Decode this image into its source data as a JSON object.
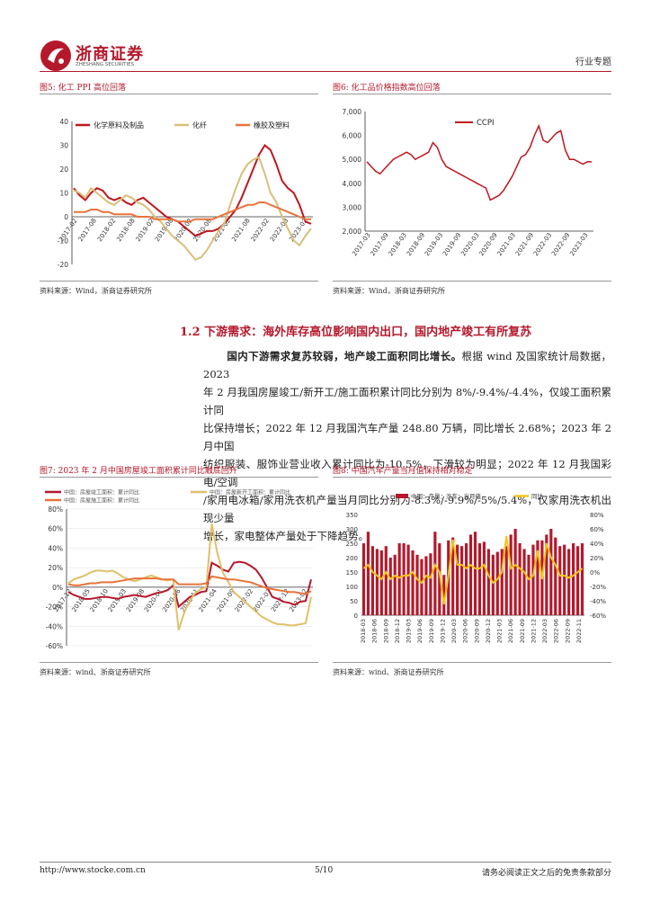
{
  "header": {
    "company_cn": "浙商证券",
    "company_en": "ZHESHANG SECURITIES",
    "section": "行业专题",
    "accent": "#b5182b"
  },
  "fig5": {
    "title": "图5:  化工 PPI 高位回落",
    "source": "资料来源：Wind，浙商证券研究所",
    "chart_data": {
      "type": "line",
      "title": "化工 PPI 高位回落",
      "ylim": [
        -20,
        40
      ],
      "yticks": [
        "40",
        "30",
        "20",
        "10",
        "0",
        "-10",
        "-20"
      ],
      "xticks": [
        "2017-02",
        "2017-08",
        "2018-02",
        "2018-08",
        "2019-02",
        "2019-08",
        "2020-02",
        "2020-08",
        "2021-02",
        "2021-08",
        "2022-02",
        "2022-08",
        "2023-02"
      ],
      "series": [
        {
          "name": "化学原料及制品",
          "color": "#c0161f",
          "values": [
            12,
            9,
            7,
            10,
            12,
            11,
            8,
            7,
            8,
            6,
            5,
            7,
            8,
            6,
            4,
            2,
            0,
            -1,
            -2,
            -4,
            -6,
            -8,
            -7,
            -6,
            -6,
            -5,
            -3,
            0,
            3,
            8,
            14,
            20,
            26,
            30,
            28,
            22,
            15,
            12,
            10,
            5,
            -2,
            -3
          ]
        },
        {
          "name": "化纤",
          "color": "#d9bf7a",
          "values": [
            11,
            10,
            8,
            12,
            10,
            8,
            6,
            5,
            7,
            9,
            8,
            6,
            5,
            3,
            0,
            -2,
            -5,
            -8,
            -10,
            -12,
            -15,
            -18,
            -17,
            -14,
            -10,
            -6,
            -3,
            5,
            12,
            18,
            22,
            24,
            25,
            18,
            10,
            6,
            0,
            -5,
            -10,
            -12,
            -8,
            -5
          ]
        },
        {
          "name": "橡胶及塑料",
          "color": "#e8733a",
          "values": [
            2,
            2,
            2,
            3,
            3,
            2,
            2,
            1,
            1,
            1,
            1,
            0,
            0,
            0,
            -1,
            -1,
            -1,
            -1,
            -2,
            -2,
            -2,
            -1,
            -1,
            -1,
            -1,
            0,
            1,
            2,
            3,
            4,
            5,
            5,
            6,
            6,
            5,
            4,
            3,
            2,
            1,
            0,
            -1,
            -1
          ]
        }
      ]
    }
  },
  "fig6": {
    "title": "图6:  化工品价格指数高位回落",
    "source": "资料来源：Wind，浙商证券研究所",
    "chart_data": {
      "type": "line",
      "title": "化工品价格指数高位回落",
      "ylim": [
        2000,
        7000
      ],
      "yticks": [
        "7,000",
        "6,000",
        "5,000",
        "4,000",
        "3,000",
        "2,000"
      ],
      "xticks": [
        "2017-03",
        "2017-09",
        "2018-03",
        "2018-09",
        "2019-03",
        "2019-09",
        "2020-03",
        "2020-09",
        "2021-03",
        "2021-09",
        "2022-03",
        "2022-09",
        "2023-03"
      ],
      "series": [
        {
          "name": "CCPI",
          "color": "#c0161f",
          "values": [
            4900,
            4700,
            4500,
            4400,
            4600,
            4800,
            5000,
            5100,
            5200,
            5300,
            5200,
            5000,
            5100,
            5200,
            5300,
            5700,
            5500,
            5000,
            4700,
            4600,
            4500,
            4400,
            4300,
            4200,
            4100,
            4000,
            3900,
            3800,
            3300,
            3400,
            3500,
            3700,
            4000,
            4300,
            4700,
            5100,
            5200,
            5500,
            6000,
            6400,
            5800,
            5700,
            5900,
            6100,
            6200,
            5400,
            5000,
            5000,
            4900,
            4800,
            4900,
            4900
          ]
        }
      ]
    }
  },
  "section": {
    "heading": "1.2 下游需求：海外库存高位影响国内出口，国内地产竣工有所复苏",
    "para_bold": "国内下游需求复苏较弱，地产竣工面积同比增长。",
    "para_lines": [
      "根据 wind 及国家统计局数据，2023",
      "年 2 月我国房屋竣工/新开工/施工面积累计同比分别为 8%/-9.4%/-4.4%，仅竣工面积累计同",
      "比保持增长；2022 年 12 月我国汽车产量 248.80 万辆，同比增长 2.68%；2023 年 2 月中国",
      "纺织服装、服饰业营业收入累计同比为-10.5%，下滑较为明显；2022 年 12 月我国彩电/空调",
      "/家用电冰箱/家用洗衣机产量当月同比分别为-8.3%/-9.9%/-5%/5.4%，仅家用洗衣机出现少量",
      "增长，家电整体产量处于下降趋势。"
    ]
  },
  "fig7": {
    "title": "图7:  2023 年 2 月中国房屋竣工面积累计同比触底回升",
    "source": "资料来源：wind、浙商证券研究所",
    "chart_data": {
      "type": "line",
      "title": "2023 年 2 月中国房屋竣工面积累计同比触底回升",
      "ylim": [
        -60,
        80
      ],
      "yticks": [
        "80%",
        "60%",
        "40%",
        "20%",
        "0%",
        "-20%",
        "-40%",
        "-60%"
      ],
      "xticks": [
        "2017-12",
        "2018-05",
        "2018-10",
        "2019-03",
        "2019-08",
        "2020-01",
        "2020-06",
        "2020-11",
        "2021-04",
        "2021-09",
        "2022-02",
        "2022-07",
        "2022-12",
        "2023-02"
      ],
      "legend": [
        "中国：房屋竣工面积：累计同比",
        "中国：房屋新开工面积：累计同比",
        "中国：房屋施工面积：累计同比"
      ],
      "series": [
        {
          "name": "中国：房屋竣工面积：累计同比",
          "color": "#b5182b",
          "values": [
            -5,
            -8,
            -10,
            -12,
            -12,
            -11,
            -10,
            -10,
            -11,
            -12,
            -10,
            -9,
            -8,
            -9,
            -10,
            -8,
            -6,
            -5,
            -3,
            2,
            -20,
            -15,
            -10,
            -8,
            -5,
            -4,
            25,
            22,
            18,
            16,
            25,
            26,
            25,
            22,
            18,
            10,
            0,
            -10,
            -12,
            -15,
            -16,
            -18,
            -15,
            -14,
            8
          ]
        },
        {
          "name": "中国：房屋新开工面积：累计同比",
          "color": "#e0c06a",
          "values": [
            4,
            8,
            10,
            12,
            15,
            17,
            17,
            16,
            17,
            14,
            10,
            8,
            6,
            8,
            10,
            12,
            10,
            8,
            7,
            8,
            -44,
            -26,
            -14,
            -6,
            -2,
            0,
            65,
            35,
            15,
            5,
            -5,
            -10,
            -15,
            -20,
            -25,
            -30,
            -33,
            -36,
            -38,
            -38,
            -39,
            -39,
            -38,
            -37,
            -10
          ]
        },
        {
          "name": "中国：房屋施工面积：累计同比",
          "color": "#e8733a",
          "values": [
            3,
            2,
            2,
            3,
            4,
            4,
            5,
            5,
            5,
            6,
            7,
            8,
            9,
            9,
            9,
            9,
            9,
            8,
            8,
            8,
            3,
            3,
            3,
            3,
            3,
            4,
            11,
            10,
            9,
            8,
            8,
            7,
            6,
            5,
            3,
            1,
            -1,
            -2,
            -3,
            -4,
            -5,
            -5,
            -6,
            -7,
            -4
          ]
        }
      ]
    }
  },
  "fig8": {
    "title": "图8:  中国汽车产量当月值保持相对稳定",
    "source": "资料来源：wind、浙商证券研究所",
    "chart_data": {
      "type": "bar",
      "title": "中国汽车产量当月值保持相对稳定",
      "ylim_left": [
        0,
        350
      ],
      "ylim_right": [
        -60,
        80
      ],
      "yticks_left": [
        "350",
        "300",
        "250",
        "200",
        "150",
        "100",
        "50",
        "0"
      ],
      "yticks_right": [
        "80%",
        "60%",
        "40%",
        "20%",
        "0%",
        "-20%",
        "-40%",
        "-60%"
      ],
      "xticks": [
        "2018-03",
        "2018-06",
        "2018-09",
        "2018-12",
        "2019-03",
        "2019-06",
        "2019-09",
        "2019-12",
        "2020-03",
        "2020-06",
        "2020-09",
        "2020-12",
        "2021-03",
        "2021-06",
        "2021-09",
        "2021-12",
        "2022-03",
        "2022-06",
        "2022-09",
        "2022-11"
      ],
      "legend": [
        "中国：产量：汽车：当月值",
        "同比"
      ],
      "series": [
        {
          "name": "中国：产量：汽车：当月值",
          "color": "#b5182b",
          "values": [
            250,
            290,
            240,
            230,
            225,
            240,
            200,
            210,
            250,
            250,
            245,
            225,
            210,
            195,
            205,
            215,
            290,
            250,
            140,
            260,
            270,
            245,
            240,
            250,
            280,
            290,
            250,
            255,
            230,
            210,
            220,
            230,
            240,
            280,
            300,
            250,
            230,
            210,
            245,
            260,
            260,
            280,
            300,
            270,
            240,
            245,
            230,
            250,
            240,
            250
          ]
        },
        {
          "name": "同比",
          "color": "#f5c518",
          "values": [
            5,
            10,
            0,
            -5,
            -10,
            0,
            -10,
            -5,
            -8,
            -5,
            -5,
            0,
            -10,
            -15,
            -5,
            -8,
            10,
            0,
            -45,
            -5,
            45,
            10,
            10,
            5,
            10,
            5,
            5,
            10,
            -5,
            -15,
            -10,
            0,
            50,
            5,
            10,
            5,
            0,
            -10,
            -5,
            30,
            -10,
            40,
            20,
            10,
            -5,
            -5,
            -8,
            -5,
            0,
            5
          ]
        }
      ]
    }
  },
  "footer": {
    "url": "http://www.stocke.com.cn",
    "page": "5/10",
    "disclaimer": "请务必阅读正文之后的免责条款部分"
  }
}
